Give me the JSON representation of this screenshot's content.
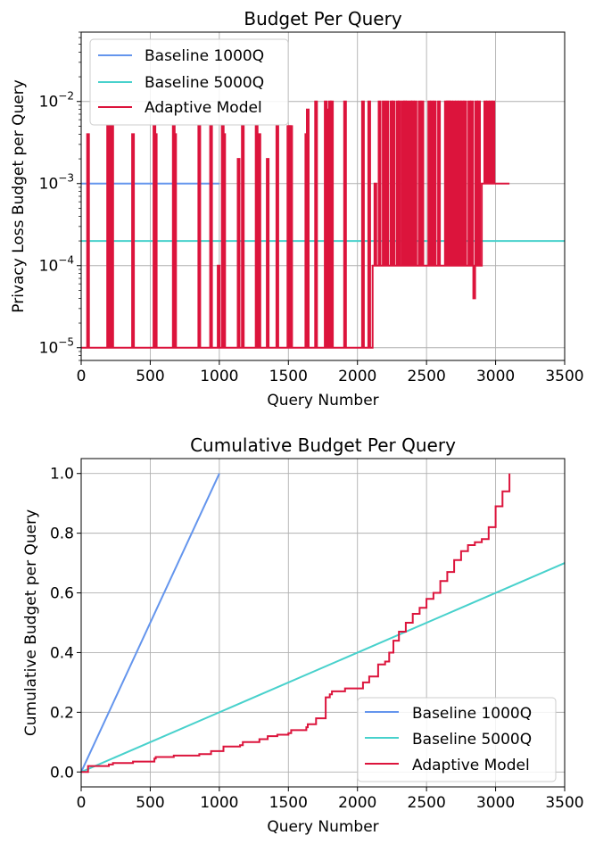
{
  "colors": {
    "baseline1000": "#6495ED",
    "baseline5000": "#48D1CC",
    "adaptive": "#DC143C"
  },
  "chart_data": [
    {
      "type": "line",
      "title": "Budget Per Query",
      "xlabel": "Query Number",
      "ylabel": "Privacy Loss Budget per Query",
      "yscale": "log",
      "xlim": [
        0,
        3500
      ],
      "ylim": [
        7e-06,
        0.07
      ],
      "xticks": [
        0,
        500,
        1000,
        1500,
        2000,
        2500,
        3000,
        3500
      ],
      "xtick_labels": [
        "0",
        "500",
        "1000",
        "1500",
        "2000",
        "2500",
        "3000",
        "3500"
      ],
      "yticks": [
        1e-05,
        0.0001,
        0.001,
        0.01
      ],
      "ytick_labels": [
        "10−5",
        "10−4",
        "10−3",
        "10−2"
      ],
      "legend": [
        "Baseline 1000Q",
        "Baseline 5000Q",
        "Adaptive Model"
      ],
      "legend_position": "top-left",
      "series": [
        {
          "name": "Baseline 1000Q",
          "x": [
            0,
            1000
          ],
          "y": [
            0.001,
            0.001
          ]
        },
        {
          "name": "Baseline 5000Q",
          "x": [
            0,
            3500
          ],
          "y": [
            0.0002,
            0.0002
          ]
        },
        {
          "name": "Adaptive Model",
          "base_level_segments": [
            {
              "x0": 0,
              "x1": 2110,
              "y": 1e-05
            },
            {
              "x0": 2110,
              "x1": 2900,
              "y": 0.0001
            },
            {
              "x0": 2900,
              "x1": 3100,
              "y": 0.001
            }
          ],
          "spikes": [
            {
              "x": 50,
              "y": 0.004
            },
            {
              "x": 195,
              "y": 0.005
            },
            {
              "x": 205,
              "y": 0.005
            },
            {
              "x": 225,
              "y": 0.005
            },
            {
              "x": 375,
              "y": 0.004
            },
            {
              "x": 530,
              "y": 0.005
            },
            {
              "x": 540,
              "y": 0.004
            },
            {
              "x": 670,
              "y": 0.005
            },
            {
              "x": 680,
              "y": 0.004
            },
            {
              "x": 855,
              "y": 0.005
            },
            {
              "x": 940,
              "y": 0.005
            },
            {
              "x": 995,
              "y": 0.0001
            },
            {
              "x": 1025,
              "y": 0.005
            },
            {
              "x": 1035,
              "y": 0.004
            },
            {
              "x": 1140,
              "y": 0.002
            },
            {
              "x": 1170,
              "y": 0.005
            },
            {
              "x": 1270,
              "y": 0.005
            },
            {
              "x": 1290,
              "y": 0.004
            },
            {
              "x": 1350,
              "y": 0.002
            },
            {
              "x": 1420,
              "y": 0.005
            },
            {
              "x": 1500,
              "y": 0.005
            },
            {
              "x": 1510,
              "y": 0.005
            },
            {
              "x": 1520,
              "y": 0.005
            },
            {
              "x": 1630,
              "y": 0.004
            },
            {
              "x": 1640,
              "y": 0.008
            },
            {
              "x": 1700,
              "y": 0.01
            },
            {
              "x": 1770,
              "y": 0.01
            },
            {
              "x": 1790,
              "y": 0.008
            },
            {
              "x": 1800,
              "y": 0.01
            },
            {
              "x": 1815,
              "y": 0.01
            },
            {
              "x": 1910,
              "y": 0.01
            },
            {
              "x": 2040,
              "y": 0.01
            },
            {
              "x": 2085,
              "y": 0.01
            },
            {
              "x": 2130,
              "y": 0.001
            },
            {
              "x": 2160,
              "y": 0.01
            },
            {
              "x": 2190,
              "y": 0.01
            },
            {
              "x": 2215,
              "y": 0.01
            },
            {
              "x": 2245,
              "y": 0.01
            },
            {
              "x": 2260,
              "y": 0.01
            },
            {
              "x": 2290,
              "y": 0.01
            },
            {
              "x": 2305,
              "y": 0.01
            },
            {
              "x": 2330,
              "y": 0.01
            },
            {
              "x": 2345,
              "y": 0.01
            },
            {
              "x": 2360,
              "y": 0.01
            },
            {
              "x": 2385,
              "y": 0.01
            },
            {
              "x": 2400,
              "y": 0.01
            },
            {
              "x": 2420,
              "y": 0.01
            },
            {
              "x": 2450,
              "y": 0.01
            },
            {
              "x": 2470,
              "y": 0.01
            },
            {
              "x": 2520,
              "y": 0.01
            },
            {
              "x": 2540,
              "y": 0.01
            },
            {
              "x": 2560,
              "y": 0.01
            },
            {
              "x": 2590,
              "y": 0.01
            },
            {
              "x": 2640,
              "y": 0.01
            },
            {
              "x": 2655,
              "y": 0.01
            },
            {
              "x": 2665,
              "y": 0.01
            },
            {
              "x": 2680,
              "y": 0.01
            },
            {
              "x": 2700,
              "y": 0.01
            },
            {
              "x": 2720,
              "y": 0.01
            },
            {
              "x": 2740,
              "y": 0.01
            },
            {
              "x": 2760,
              "y": 0.01
            },
            {
              "x": 2780,
              "y": 0.01
            },
            {
              "x": 2810,
              "y": 0.01
            },
            {
              "x": 2830,
              "y": 0.01
            },
            {
              "x": 2860,
              "y": 0.01
            },
            {
              "x": 2880,
              "y": 0.01
            },
            {
              "x": 2925,
              "y": 0.01
            },
            {
              "x": 2945,
              "y": 0.01
            },
            {
              "x": 2965,
              "y": 0.01
            },
            {
              "x": 2985,
              "y": 0.01
            }
          ],
          "dips": [
            {
              "x": 2845,
              "y": 4e-05
            }
          ]
        }
      ]
    },
    {
      "type": "line",
      "title": "Cumulative Budget Per Query",
      "xlabel": "Query Number",
      "ylabel": "Cumulative Budget per Query",
      "xlim": [
        0,
        3500
      ],
      "ylim": [
        -0.05,
        1.05
      ],
      "xticks": [
        0,
        500,
        1000,
        1500,
        2000,
        2500,
        3000,
        3500
      ],
      "xtick_labels": [
        "0",
        "500",
        "1000",
        "1500",
        "2000",
        "2500",
        "3000",
        "3500"
      ],
      "yticks": [
        0.0,
        0.2,
        0.4,
        0.6,
        0.8,
        1.0
      ],
      "ytick_labels": [
        "0.0",
        "0.2",
        "0.4",
        "0.6",
        "0.8",
        "1.0"
      ],
      "legend": [
        "Baseline 1000Q",
        "Baseline 5000Q",
        "Adaptive Model"
      ],
      "legend_position": "bottom-right",
      "series": [
        {
          "name": "Baseline 1000Q",
          "x": [
            0,
            1000
          ],
          "y": [
            0,
            1.0
          ]
        },
        {
          "name": "Baseline 5000Q",
          "x": [
            0,
            3500
          ],
          "y": [
            0,
            0.7
          ]
        },
        {
          "name": "Adaptive Model",
          "x": [
            0,
            50,
            200,
            230,
            375,
            530,
            540,
            670,
            855,
            940,
            1030,
            1150,
            1170,
            1290,
            1350,
            1420,
            1500,
            1520,
            1630,
            1640,
            1700,
            1770,
            1800,
            1815,
            1910,
            2040,
            2085,
            2150,
            2200,
            2230,
            2260,
            2300,
            2350,
            2400,
            2450,
            2500,
            2550,
            2600,
            2650,
            2700,
            2750,
            2800,
            2850,
            2900,
            2950,
            3000,
            3050,
            3100
          ],
          "y": [
            0,
            0.02,
            0.025,
            0.03,
            0.035,
            0.045,
            0.05,
            0.055,
            0.06,
            0.07,
            0.085,
            0.09,
            0.1,
            0.11,
            0.12,
            0.125,
            0.13,
            0.14,
            0.15,
            0.16,
            0.18,
            0.25,
            0.26,
            0.27,
            0.28,
            0.3,
            0.32,
            0.36,
            0.37,
            0.4,
            0.44,
            0.47,
            0.5,
            0.53,
            0.55,
            0.58,
            0.6,
            0.64,
            0.67,
            0.71,
            0.74,
            0.76,
            0.77,
            0.78,
            0.82,
            0.89,
            0.94,
            1.0
          ]
        }
      ]
    }
  ]
}
